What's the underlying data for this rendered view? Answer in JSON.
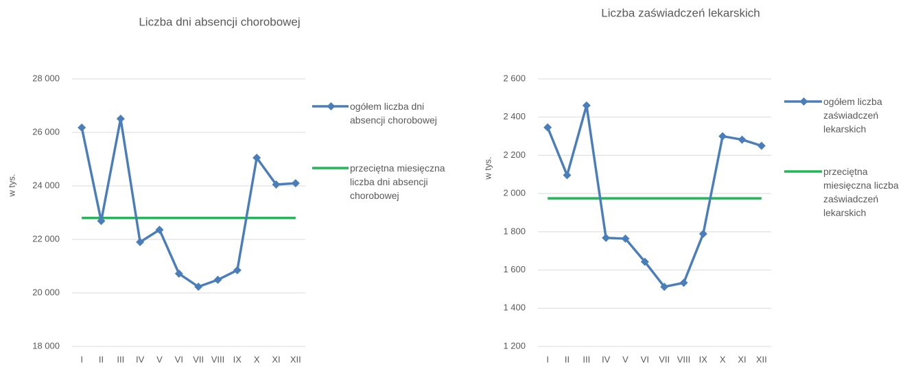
{
  "chart_data": [
    {
      "type": "line",
      "title": "Liczba dni absencji chorobowej",
      "y_label": "w tys.",
      "categories": [
        "I",
        "II",
        "III",
        "IV",
        "V",
        "VI",
        "VII",
        "VIII",
        "IX",
        "X",
        "XI",
        "XII"
      ],
      "ylim": [
        18000,
        28000
      ],
      "yticks": [
        {
          "value": 18000,
          "label": "18 000"
        },
        {
          "value": 20000,
          "label": "20 000"
        },
        {
          "value": 22000,
          "label": "22 000"
        },
        {
          "value": 24000,
          "label": "24 000"
        },
        {
          "value": 26000,
          "label": "26 000"
        },
        {
          "value": 28000,
          "label": "28 000"
        }
      ],
      "grid": true,
      "legend": "right",
      "series": [
        {
          "name": "ogółem liczba dni absencji chorobowej",
          "color": "#4a7ebb",
          "marker": "diamond",
          "values": [
            26180,
            22690,
            26510,
            21900,
            22360,
            20720,
            20230,
            20490,
            20850,
            25050,
            24050,
            24100
          ]
        },
        {
          "name": "przeciętna miesięczna liczba dni absencji chorobowej",
          "color": "#1db954",
          "values": [
            22800,
            22800,
            22800,
            22800,
            22800,
            22800,
            22800,
            22800,
            22800,
            22800,
            22800,
            22800
          ]
        }
      ]
    },
    {
      "type": "line",
      "title": "Liczba zaświadczeń lekarskich",
      "y_label": "w tys.",
      "categories": [
        "I",
        "II",
        "III",
        "IV",
        "V",
        "VI",
        "VII",
        "VIII",
        "IX",
        "X",
        "XI",
        "XII"
      ],
      "ylim": [
        1200,
        2600
      ],
      "yticks": [
        {
          "value": 1200,
          "label": "1 200"
        },
        {
          "value": 1400,
          "label": "1 400"
        },
        {
          "value": 1600,
          "label": "1 600"
        },
        {
          "value": 1800,
          "label": "1 800"
        },
        {
          "value": 2000,
          "label": "2 000"
        },
        {
          "value": 2200,
          "label": "2 200"
        },
        {
          "value": 2400,
          "label": "2 400"
        },
        {
          "value": 2600,
          "label": "2 600"
        }
      ],
      "grid": true,
      "legend": "right",
      "series": [
        {
          "name": "ogółem liczba zaświadczeń lekarskich",
          "color": "#4a7ebb",
          "marker": "diamond",
          "values": [
            2346,
            2096,
            2461,
            1768,
            1764,
            1643,
            1512,
            1533,
            1789,
            2300,
            2282,
            2250
          ]
        },
        {
          "name": "przeciętna miesięczna liczba zaświadczeń lekarskich",
          "color": "#1db954",
          "values": [
            1975,
            1975,
            1975,
            1975,
            1975,
            1975,
            1975,
            1975,
            1975,
            1975,
            1975,
            1975
          ]
        }
      ]
    }
  ]
}
